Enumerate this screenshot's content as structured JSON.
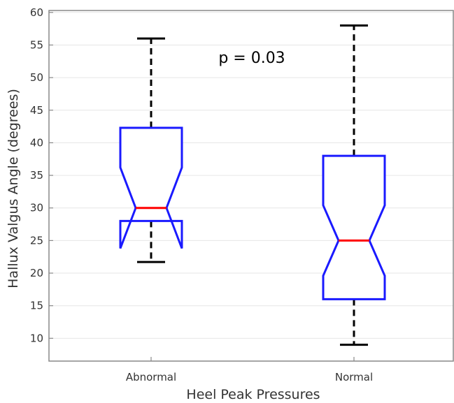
{
  "chart_data": {
    "type": "boxplot",
    "title": "",
    "xlabel": "Heel Peak Pressures",
    "ylabel": "Hallux Valgus Angle (degrees)",
    "ylim": [
      6.5,
      60.3
    ],
    "yticks": [
      10,
      15,
      20,
      25,
      30,
      35,
      40,
      45,
      50,
      55,
      60
    ],
    "grid": "horizontal",
    "notched": true,
    "colors": {
      "box": "#1a1aff",
      "median": "#ff0000",
      "whisker": "#000000",
      "grid": "#e6e6e6",
      "axis": "#888888"
    },
    "categories": [
      "Abnormal",
      "Normal"
    ],
    "boxes": [
      {
        "category": "Abnormal",
        "whisker_low": 21.7,
        "q1": 28.0,
        "median": 30.0,
        "q3": 42.3,
        "whisker_high": 56.0,
        "notch_low": 23.8,
        "notch_high": 36.2
      },
      {
        "category": "Normal",
        "whisker_low": 9.0,
        "q1": 16.0,
        "median": 25.0,
        "q3": 38.0,
        "whisker_high": 58.0,
        "notch_low": 19.6,
        "notch_high": 30.4
      }
    ],
    "annotation": "p = 0.03"
  }
}
